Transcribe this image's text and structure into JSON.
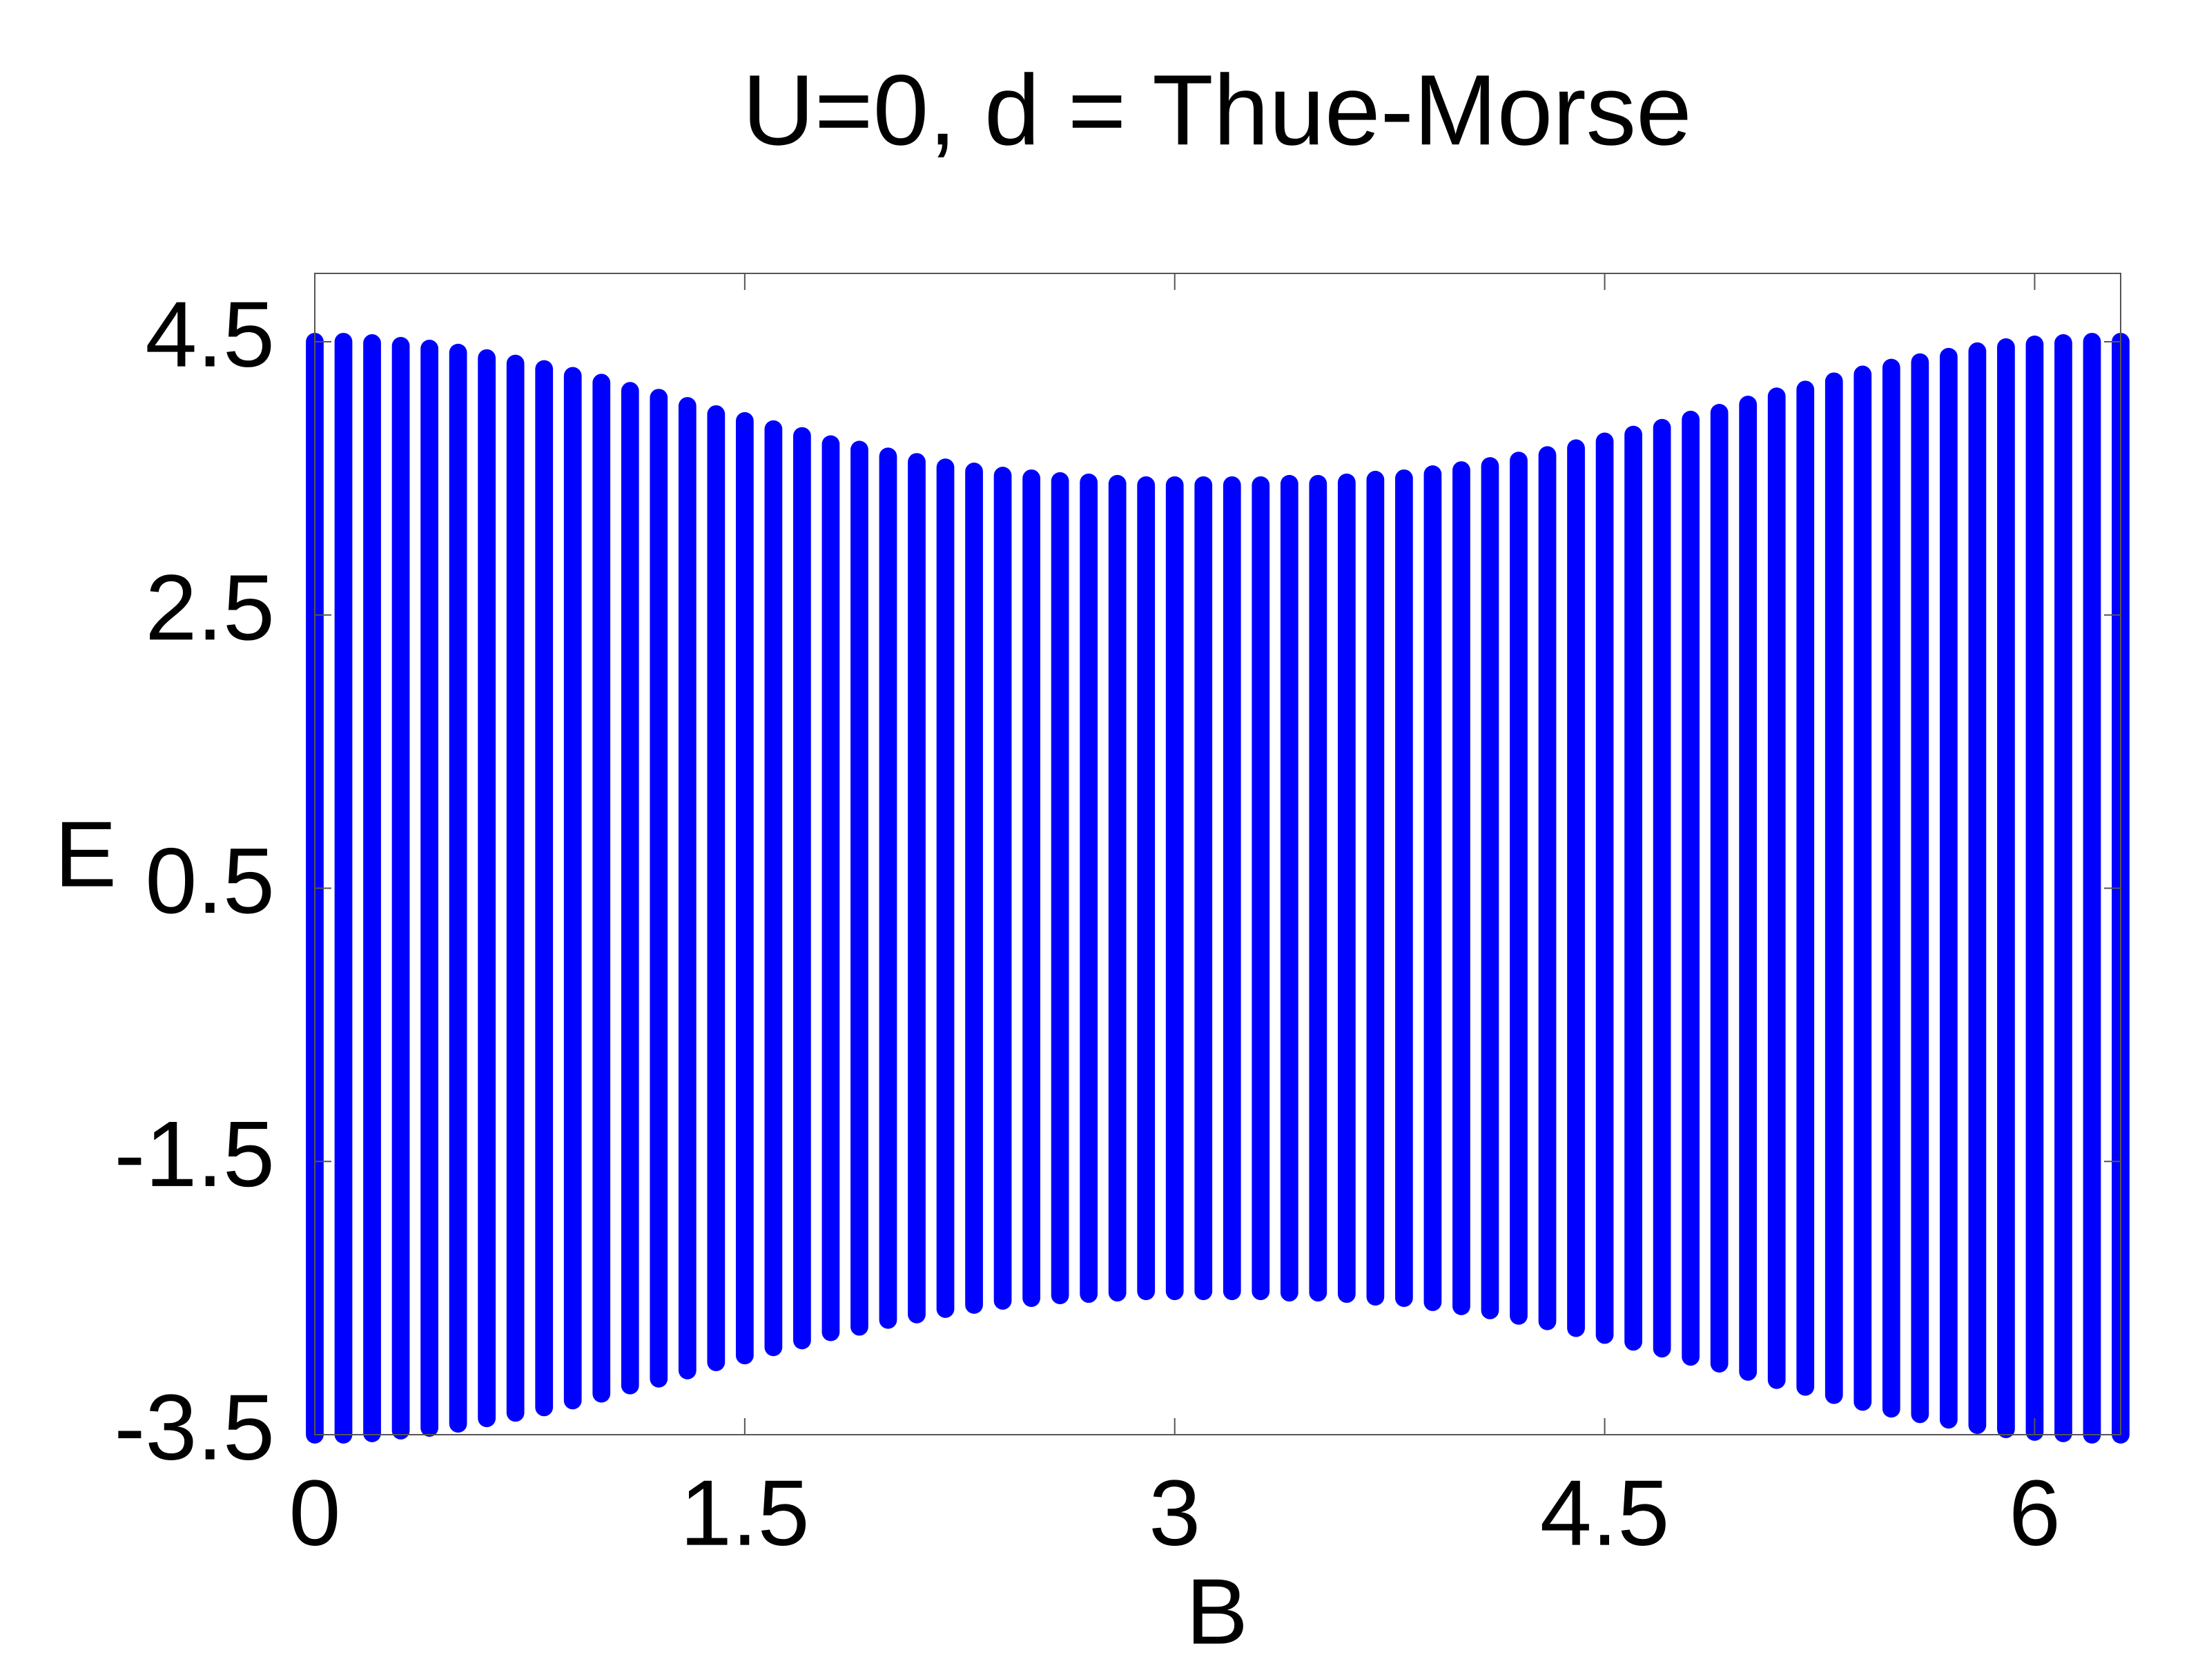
{
  "chart_data": {
    "type": "range",
    "title": "U=0, d = Thue-Morse",
    "xlabel": "B",
    "ylabel": "E",
    "x": [
      0,
      0.1,
      0.2,
      0.3,
      0.4,
      0.5,
      0.6,
      0.7,
      0.8,
      0.9,
      1.0,
      1.1,
      1.2,
      1.3,
      1.4,
      1.5,
      1.6,
      1.7,
      1.8,
      1.9,
      2.0,
      2.1,
      2.2,
      2.3,
      2.4,
      2.5,
      2.6,
      2.7,
      2.8,
      2.9,
      3.0,
      3.1,
      3.2,
      3.3,
      3.4,
      3.5,
      3.6,
      3.7,
      3.8,
      3.9,
      4.0,
      4.1,
      4.2,
      4.3,
      4.4,
      4.5,
      4.6,
      4.7,
      4.8,
      4.9,
      5.0,
      5.1,
      5.2,
      5.3,
      5.4,
      5.5,
      5.6,
      5.7,
      5.8,
      5.9,
      6.0,
      6.1,
      6.2,
      6.3
    ],
    "series": [
      {
        "color": "#0000ff",
        "values": [
          4.5,
          4.5,
          4.49,
          4.47,
          4.45,
          4.42,
          4.38,
          4.34,
          4.3,
          4.25,
          4.2,
          4.14,
          4.09,
          4.03,
          3.97,
          3.92,
          3.86,
          3.81,
          3.75,
          3.71,
          3.66,
          3.62,
          3.58,
          3.55,
          3.52,
          3.5,
          3.48,
          3.47,
          3.46,
          3.45,
          3.45,
          3.45,
          3.45,
          3.45,
          3.46,
          3.46,
          3.47,
          3.49,
          3.5,
          3.53,
          3.56,
          3.59,
          3.63,
          3.67,
          3.72,
          3.77,
          3.82,
          3.87,
          3.93,
          3.98,
          4.04,
          4.1,
          4.15,
          4.21,
          4.26,
          4.31,
          4.35,
          4.39,
          4.43,
          4.46,
          4.48,
          4.49,
          4.5,
          4.5
        ]
      },
      {
        "color": "#0000ff",
        "values": [
          -3.5,
          -3.5,
          -3.49,
          -3.47,
          -3.45,
          -3.42,
          -3.38,
          -3.34,
          -3.3,
          -3.25,
          -3.2,
          -3.14,
          -3.09,
          -3.03,
          -2.97,
          -2.92,
          -2.86,
          -2.81,
          -2.75,
          -2.71,
          -2.66,
          -2.62,
          -2.58,
          -2.55,
          -2.52,
          -2.5,
          -2.48,
          -2.47,
          -2.46,
          -2.45,
          -2.45,
          -2.45,
          -2.45,
          -2.45,
          -2.46,
          -2.46,
          -2.47,
          -2.49,
          -2.5,
          -2.53,
          -2.56,
          -2.59,
          -2.63,
          -2.67,
          -2.72,
          -2.77,
          -2.82,
          -2.87,
          -2.93,
          -2.98,
          -3.04,
          -3.1,
          -3.15,
          -3.21,
          -3.26,
          -3.31,
          -3.35,
          -3.39,
          -3.43,
          -3.46,
          -3.48,
          -3.49,
          -3.5,
          -3.5
        ]
      }
    ],
    "xlim": [
      0,
      6.3
    ],
    "ylim": [
      -3.5,
      5
    ],
    "xticks": [
      0,
      1.5,
      3,
      4.5,
      6
    ],
    "yticks": [
      -3.5,
      -1.5,
      0.5,
      2.5,
      4.5
    ],
    "grid": false
  }
}
